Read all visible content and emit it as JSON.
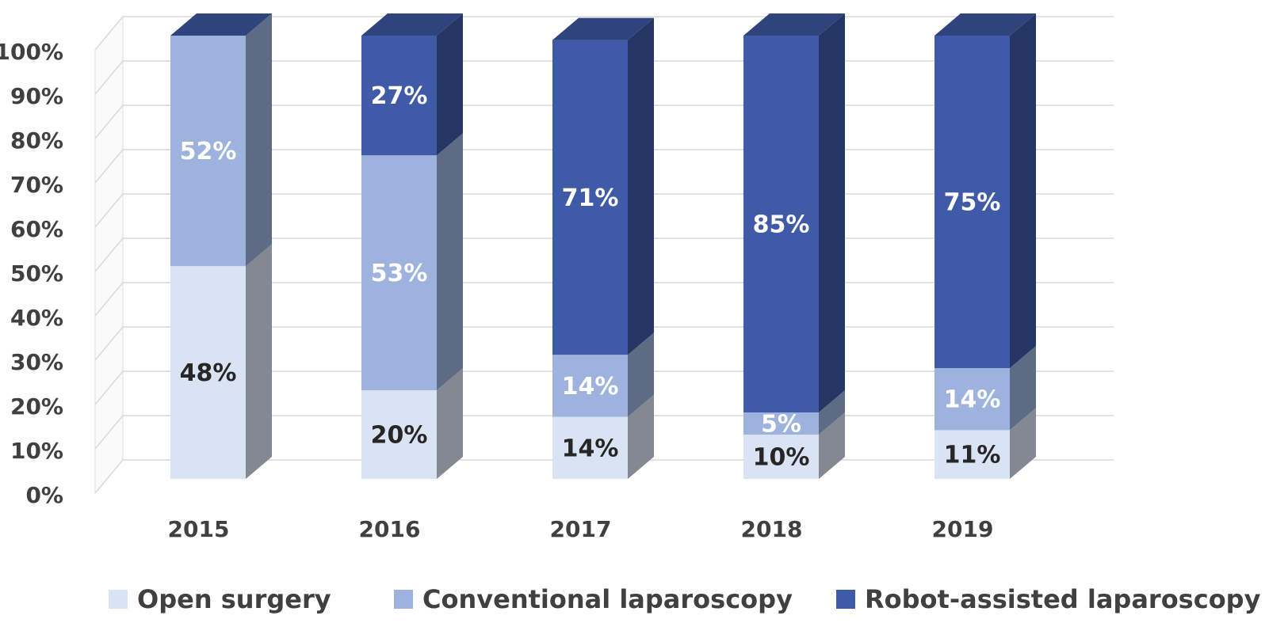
{
  "chart_data": {
    "type": "bar3d_stacked",
    "categories": [
      "2015",
      "2016",
      "2017",
      "2018",
      "2019"
    ],
    "ylim": [
      0,
      100
    ],
    "yticks": [
      {
        "value": 0,
        "label": "0%"
      },
      {
        "value": 10,
        "label": "10%"
      },
      {
        "value": 20,
        "label": "20%"
      },
      {
        "value": 30,
        "label": "30%"
      },
      {
        "value": 40,
        "label": "40%"
      },
      {
        "value": 50,
        "label": "50%"
      },
      {
        "value": 60,
        "label": "60%"
      },
      {
        "value": 70,
        "label": "70%"
      },
      {
        "value": 80,
        "label": "80%"
      },
      {
        "value": 90,
        "label": "90%"
      },
      {
        "value": 100,
        "label": "100%"
      }
    ],
    "grid": true,
    "legend": "bottom",
    "series": [
      {
        "name": "Open surgery",
        "color": "#dae3f3",
        "label_color": "#262626",
        "values": [
          48,
          20,
          14,
          10,
          11
        ],
        "value_labels": [
          "48%",
          "20%",
          "14%",
          "10%",
          "11%"
        ]
      },
      {
        "name": "Conventional laparoscopy",
        "color": "#9db3de",
        "label_color": "#ffffff",
        "values": [
          52,
          53,
          14,
          5,
          14
        ],
        "value_labels": [
          "52%",
          "53%",
          "14%",
          "5%",
          "14%"
        ]
      },
      {
        "name": "Robot-assisted laparoscopy",
        "color": "#3f5aa6",
        "label_color": "#ffffff",
        "values": [
          0,
          27,
          71,
          85,
          75
        ],
        "value_labels": [
          null,
          "27%",
          "71%",
          "85%",
          "75%"
        ]
      }
    ]
  }
}
